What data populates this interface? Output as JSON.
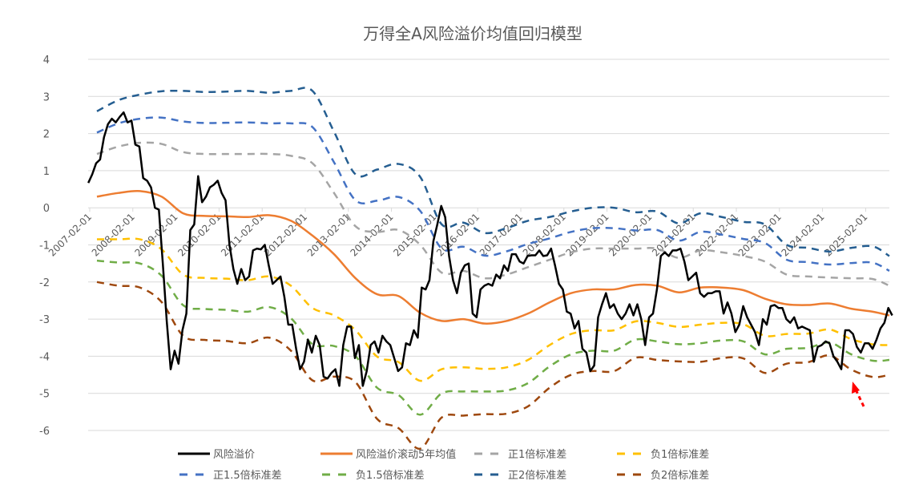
{
  "chart_data": {
    "type": "line",
    "title": "万得全A风险溢价均值回归模型",
    "xlabel": "",
    "ylabel": "",
    "ylim": [
      -6,
      4
    ],
    "yticks": [
      4,
      3,
      2,
      1,
      0,
      -1,
      -2,
      -3,
      -4,
      -5,
      -6
    ],
    "grid": true,
    "legend_position": "bottom",
    "x_range": [
      "2007-01",
      "2025-09"
    ],
    "xtick_labels": [
      "2007-02-01",
      "2008-02-01",
      "2009-02-01",
      "2010-02-01",
      "2011-02-01",
      "2012-02-01",
      "2013-02-01",
      "2014-02-01",
      "2015-02-01",
      "2016-02-01",
      "2017-02-01",
      "2018-02-01",
      "2019-02-01",
      "2020-02-01",
      "2021-02-01",
      "2022-02-01",
      "2023-02-01",
      "2024-02-01",
      "2025-02-01"
    ],
    "risk_premium": {
      "name": "风险溢价",
      "color": "#000000",
      "x_start": 2007.05,
      "x_end": 2025.7,
      "values": [
        0.67,
        0.9,
        1.2,
        1.3,
        1.9,
        2.25,
        2.4,
        2.3,
        2.45,
        2.57,
        2.3,
        2.35,
        1.7,
        1.65,
        0.8,
        0.73,
        0.55,
        0,
        -0.05,
        -1.5,
        -3.05,
        -4.35,
        -3.85,
        -4.2,
        -3.3,
        -2.85,
        -0.6,
        -0.45,
        0.85,
        0.15,
        0.3,
        0.55,
        0.62,
        0.73,
        0.4,
        0.2,
        -1.0,
        -1.65,
        -2.05,
        -1.65,
        -1.95,
        -1.85,
        -1.15,
        -1.1,
        -1.12,
        -1.0,
        -1.55,
        -2.05,
        -1.95,
        -1.85,
        -2.4,
        -3.15,
        -3.15,
        -3.8,
        -4.35,
        -4.15,
        -3.55,
        -3.9,
        -3.45,
        -3.7,
        -4.55,
        -4.6,
        -4.45,
        -4.35,
        -4.8,
        -3.7,
        -3.2,
        -3.2,
        -4.05,
        -3.7,
        -4.8,
        -4.4,
        -3.7,
        -3.6,
        -3.9,
        -3.45,
        -3.6,
        -3.7,
        -4.05,
        -4.4,
        -4.3,
        -3.65,
        -3.7,
        -3.3,
        -3.5,
        -2.15,
        -2.2,
        -1.95,
        -0.9,
        -0.45,
        0.05,
        -0.25,
        -1.3,
        -1.95,
        -2.3,
        -1.75,
        -1.55,
        -1.5,
        -2.85,
        -2.95,
        -2.2,
        -2.1,
        -2.05,
        -2.1,
        -1.8,
        -1.9,
        -1.55,
        -1.7,
        -1.25,
        -1.25,
        -1.45,
        -1.5,
        -1.3,
        -1.28,
        -1.28,
        -1.15,
        -1.3,
        -1.28,
        -1.1,
        -1.55,
        -2.05,
        -2.2,
        -2.8,
        -2.85,
        -3.25,
        -3.05,
        -3.8,
        -3.9,
        -4.4,
        -4.25,
        -2.95,
        -2.6,
        -2.3,
        -2.7,
        -2.6,
        -2.85,
        -3.0,
        -2.85,
        -2.6,
        -2.9,
        -2.6,
        -3.0,
        -3.7,
        -2.95,
        -2.85,
        -2.2,
        -1.3,
        -1.2,
        -1.3,
        -1.15,
        -1.15,
        -1.1,
        -1.45,
        -1.95,
        -1.85,
        -1.75,
        -2.3,
        -2.4,
        -2.3,
        -2.3,
        -2.25,
        -2.25,
        -2.85,
        -2.55,
        -2.85,
        -3.35,
        -3.15,
        -2.65,
        -2.95,
        -3.15,
        -3.35,
        -3.7,
        -3.0,
        -3.15,
        -2.65,
        -2.62,
        -2.7,
        -2.7,
        -3.0,
        -3.1,
        -2.95,
        -3.25,
        -3.2,
        -3.25,
        -3.3,
        -4.15,
        -3.75,
        -3.7,
        -3.6,
        -3.65,
        -4.0,
        -4.15,
        -4.35,
        -3.3,
        -3.3,
        -3.4,
        -3.75,
        -3.9,
        -3.65,
        -3.65,
        -3.8,
        -3.55,
        -3.25,
        -3.1,
        -2.7,
        -2.9
      ]
    },
    "band_x": {
      "start": 2007.25,
      "step": 0.5
    },
    "rolling_mean": {
      "name": "风险溢价滚动5年均值",
      "color": "#ED7D31",
      "values": [
        0.3,
        0.4,
        0.45,
        0.3,
        -0.15,
        -0.22,
        -0.23,
        -0.25,
        -0.2,
        -0.35,
        -0.75,
        -1.25,
        -1.9,
        -2.33,
        -2.38,
        -2.83,
        -3.05,
        -3.0,
        -3.12,
        -3.05,
        -2.85,
        -2.55,
        -2.3,
        -2.2,
        -2.2,
        -2.08,
        -2.1,
        -2.28,
        -2.15,
        -2.15,
        -2.22,
        -2.45,
        -2.6,
        -2.62,
        -2.58,
        -2.72,
        -2.8,
        -2.9
      ]
    },
    "rolling_std": [
      1.15,
      1.25,
      1.3,
      1.42,
      1.65,
      1.67,
      1.68,
      1.7,
      1.65,
      1.75,
      1.95,
      1.65,
      1.4,
      1.68,
      1.78,
      1.83,
      1.3,
      1.3,
      1.22,
      1.25,
      1.25,
      1.15,
      1.1,
      1.1,
      1.1,
      0.98,
      1.0,
      0.93,
      1.0,
      0.95,
      0.92,
      1.0,
      0.8,
      0.77,
      0.7,
      0.82,
      0.88,
      0.8
    ],
    "bands": [
      {
        "name": "正1倍标准差",
        "k": 1,
        "color": "#A5A5A5"
      },
      {
        "name": "负1倍标准差",
        "k": -1,
        "color": "#FFC000"
      },
      {
        "name": "正1.5倍标准差",
        "k": 1.5,
        "color": "#4472C4"
      },
      {
        "name": "负1.5倍标准差",
        "k": -1.5,
        "color": "#70AD47"
      },
      {
        "name": "正2倍标准差",
        "k": 2,
        "color": "#255E91"
      },
      {
        "name": "负2倍标准差",
        "k": -2,
        "color": "#9E480E"
      }
    ],
    "legend": [
      "风险溢价",
      "风险溢价滚动5年均值",
      "正1倍标准差",
      "负1倍标准差",
      "正1.5倍标准差",
      "负1.5倍标准差",
      "正2倍标准差",
      "负2倍标准差"
    ],
    "annotation_color": "#FF0000"
  }
}
